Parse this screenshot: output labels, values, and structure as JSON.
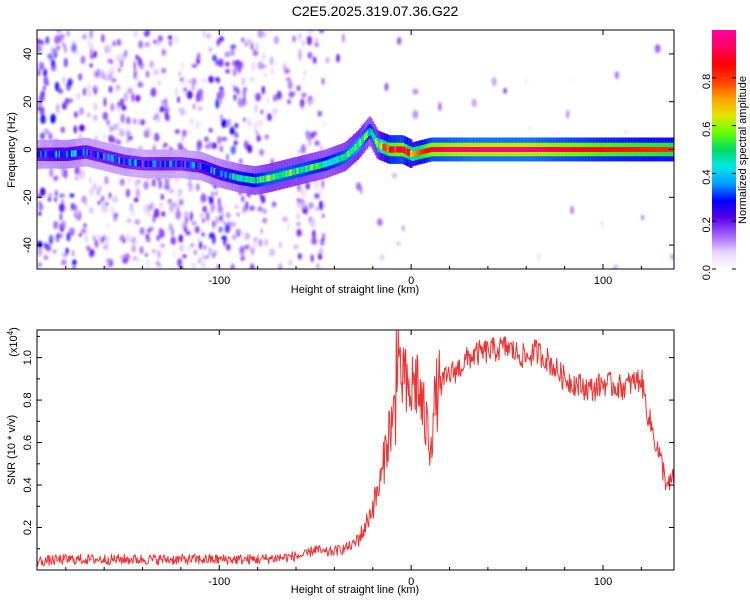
{
  "title": "C2E5.2025.319.07.36.G22",
  "chart_data": [
    {
      "type": "heatmap",
      "name": "spectrogram",
      "xlabel": "Height of straight line (km)",
      "ylabel": "Frequency (Hz)",
      "xlim": [
        -195,
        137
      ],
      "ylim": [
        -50,
        50
      ],
      "xticks": [
        -100,
        0,
        100
      ],
      "xtick_labels": [
        "-100",
        "0",
        "100"
      ],
      "yticks": [
        -40,
        -20,
        0,
        20,
        40
      ],
      "ytick_labels": [
        "-40",
        "-20",
        "0",
        "20",
        "40"
      ],
      "colorbar": {
        "label": "Normalized spectral amplitude",
        "range": [
          0,
          1
        ],
        "ticks": [
          0.0,
          0.2,
          0.4,
          0.6,
          0.8
        ],
        "tick_labels": [
          "0.0",
          "0.2",
          "0.4",
          "0.6",
          "0.8"
        ],
        "colormap": [
          "#ffffff",
          "#e6d2ff",
          "#a060ff",
          "#5a00e6",
          "#0000ff",
          "#00a0ff",
          "#00e6e6",
          "#00dc64",
          "#64ff00",
          "#e6e600",
          "#ffa000",
          "#ff3c00",
          "#ff0000",
          "#ff0064",
          "#ff00a0"
        ]
      },
      "ridge": {
        "x": [
          -195,
          -180,
          -170,
          -160,
          -150,
          -140,
          -130,
          -120,
          -110,
          -100,
          -90,
          -82,
          -75,
          -65,
          -55,
          -45,
          -35,
          -28,
          -22,
          -18,
          -12,
          -5,
          0,
          10,
          30,
          60,
          100,
          137
        ],
        "y": [
          -2,
          -2,
          -1,
          -3,
          -5,
          -6,
          -6,
          -6,
          -7,
          -10,
          -12,
          -13,
          -12,
          -10,
          -8,
          -6,
          -3,
          2,
          8,
          2,
          0,
          0,
          -2,
          0,
          0,
          0,
          0,
          0
        ],
        "amplitude": [
          0.3,
          0.35,
          0.3,
          0.3,
          0.3,
          0.28,
          0.3,
          0.28,
          0.32,
          0.35,
          0.4,
          0.45,
          0.5,
          0.5,
          0.48,
          0.45,
          0.5,
          0.55,
          0.45,
          0.55,
          0.85,
          0.9,
          0.7,
          0.9,
          0.95,
          0.95,
          0.85,
          0.8
        ]
      }
    },
    {
      "type": "line",
      "name": "snr",
      "xlabel": "Height of straight line (km)",
      "ylabel": "SNR (10 * v/v)",
      "scale_label": "(x10",
      "scale_exponent": "4",
      "scale_close": ")",
      "xlim": [
        -195,
        137
      ],
      "ylim": [
        0,
        1.13
      ],
      "xticks": [
        -100,
        0,
        100
      ],
      "xtick_labels": [
        "-100",
        "0",
        "100"
      ],
      "yticks": [
        0.2,
        0.4,
        0.6,
        0.8,
        1.0
      ],
      "ytick_labels": [
        "0.2",
        "0.4",
        "0.6",
        "0.8",
        "1.0"
      ],
      "color": "#ee3333",
      "series": [
        {
          "name": "SNR",
          "x": [
            -195,
            -180,
            -160,
            -140,
            -120,
            -100,
            -80,
            -65,
            -55,
            -50,
            -45,
            -40,
            -35,
            -30,
            -25,
            -22,
            -20,
            -18,
            -15,
            -13,
            -10,
            -8,
            -6,
            -4,
            -2,
            0,
            3,
            6,
            10,
            13,
            16,
            20,
            25,
            30,
            35,
            40,
            45,
            50,
            55,
            60,
            65,
            70,
            75,
            80,
            85,
            90,
            95,
            100,
            105,
            110,
            115,
            120,
            123,
            126,
            129,
            132,
            134,
            137
          ],
          "y": [
            0.04,
            0.05,
            0.05,
            0.05,
            0.05,
            0.05,
            0.05,
            0.06,
            0.07,
            0.1,
            0.08,
            0.09,
            0.1,
            0.12,
            0.18,
            0.25,
            0.3,
            0.35,
            0.45,
            0.6,
            0.7,
            0.75,
            0.85,
            0.95,
            0.8,
            0.85,
            0.9,
            0.75,
            0.6,
            0.82,
            0.88,
            0.92,
            0.95,
            1.0,
            1.02,
            1.03,
            1.04,
            1.05,
            1.02,
            1.0,
            1.03,
            1.0,
            0.95,
            0.9,
            0.88,
            0.86,
            0.85,
            0.88,
            0.87,
            0.86,
            0.88,
            0.9,
            0.75,
            0.65,
            0.55,
            0.45,
            0.38,
            0.45
          ]
        }
      ]
    }
  ]
}
